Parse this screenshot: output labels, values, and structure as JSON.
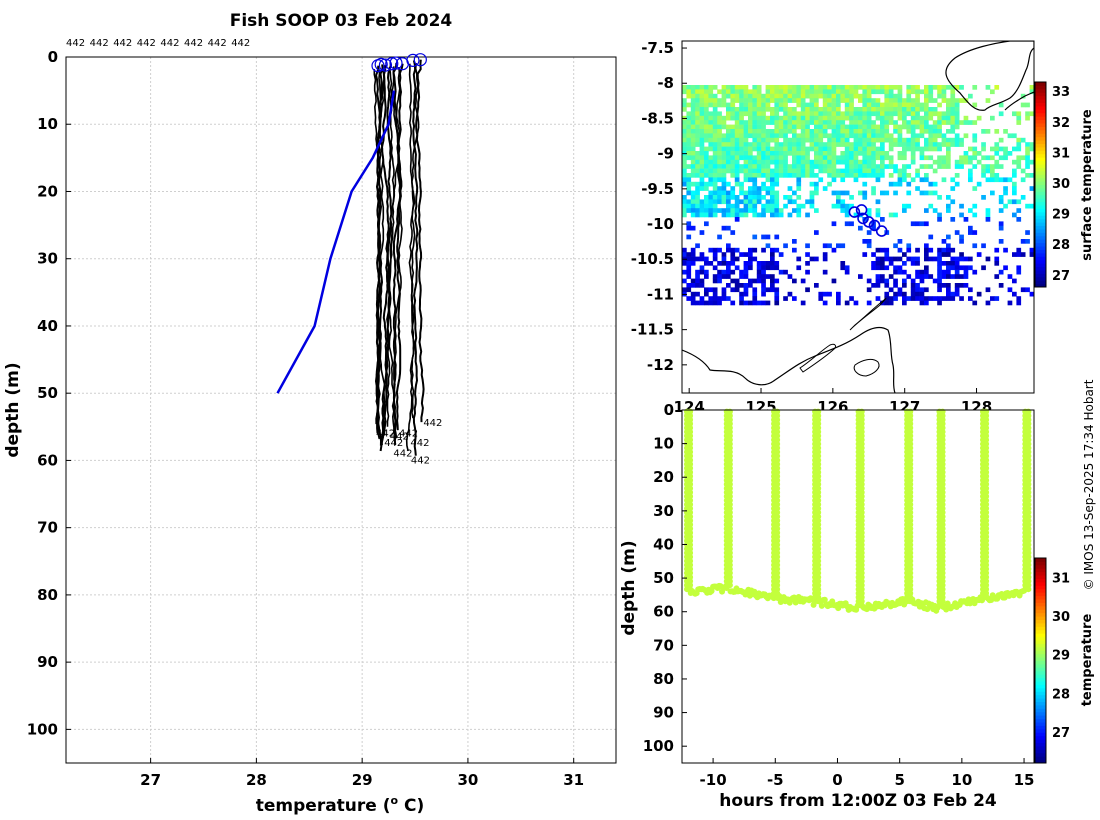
{
  "title": "Fish SOOP 03 Feb 2024",
  "credit": "© IMOS 13-Sep-2025 17:34 Hobart",
  "colors": {
    "profile_black": "#000000",
    "profile_blue": "#0000e0",
    "grid": "#cccccc"
  },
  "chart_data": [
    {
      "id": "profile",
      "type": "line",
      "title": "Fish SOOP 03 Feb 2024",
      "xlabel": "temperature (° C)",
      "xlabel_main": "temperature (",
      "xlabel_sup": "o",
      "xlabel_tail": " C)",
      "ylabel": "depth (m)",
      "xlim": [
        26.2,
        31.4
      ],
      "ylim": [
        0,
        105
      ],
      "y_reversed": true,
      "xticks": [
        "27",
        "28",
        "29",
        "30",
        "31"
      ],
      "yticks": [
        "0",
        "10",
        "20",
        "30",
        "40",
        "50",
        "60",
        "70",
        "80",
        "90",
        "100"
      ],
      "grid": true,
      "top_labels": [
        "442",
        "442",
        "442",
        "442",
        "442",
        "442",
        "442",
        "442"
      ],
      "profile_label": "442",
      "reference_profile": {
        "name": "climatology",
        "temperature": [
          29.3,
          29.25,
          29.1,
          28.9,
          28.7,
          28.55,
          28.2
        ],
        "depth": [
          5,
          10,
          15,
          20,
          30,
          40,
          50
        ]
      },
      "profiles": [
        {
          "start_temp": 29.15,
          "start_depth": 1.3,
          "end_depth": 56
        },
        {
          "start_temp": 29.18,
          "start_depth": 1.1,
          "end_depth": 58
        },
        {
          "start_temp": 29.22,
          "start_depth": 1.2,
          "end_depth": 59
        },
        {
          "start_temp": 29.28,
          "start_depth": 1.0,
          "end_depth": 57
        },
        {
          "start_temp": 29.32,
          "start_depth": 0.9,
          "end_depth": 56
        },
        {
          "start_temp": 29.38,
          "start_depth": 1.0,
          "end_depth": 58
        },
        {
          "start_temp": 29.48,
          "start_depth": 0.5,
          "end_depth": 60
        },
        {
          "start_temp": 29.55,
          "start_depth": 0.4,
          "end_depth": 55
        }
      ]
    },
    {
      "id": "sst-map",
      "type": "heatmap",
      "colorbar_label": "surface temperature",
      "clim": [
        26.6,
        33.3
      ],
      "colorbar_ticks": [
        "27",
        "28",
        "29",
        "30",
        "31",
        "32",
        "33"
      ],
      "x_ticks": [
        "124",
        "125",
        "126",
        "127",
        "128"
      ],
      "y_ticks": [
        "-7.5",
        "-8",
        "-8.5",
        "-9",
        "-9.5",
        "-10",
        "-10.5",
        "-11",
        "-11.5",
        "-12"
      ],
      "xlim": [
        123.9,
        128.8
      ],
      "ylim": [
        -12.4,
        -7.4
      ],
      "track": [
        {
          "lon": 126.3,
          "lat": -9.83
        },
        {
          "lon": 126.4,
          "lat": -9.8
        },
        {
          "lon": 126.42,
          "lat": -9.92
        },
        {
          "lon": 126.5,
          "lat": -9.97
        },
        {
          "lon": 126.58,
          "lat": -10.02
        },
        {
          "lon": 126.68,
          "lat": -10.1
        }
      ]
    },
    {
      "id": "depth-time",
      "type": "scatter",
      "xlabel": "hours from 12:00Z 03 Feb 24",
      "ylabel": "depth (m)",
      "colorbar_label": "temperature",
      "xlim": [
        -12.5,
        15.8
      ],
      "ylim": [
        0,
        105
      ],
      "y_reversed": true,
      "xticks": [
        "-10",
        "-5",
        "0",
        "5",
        "10",
        "15"
      ],
      "yticks": [
        "0",
        "10",
        "20",
        "30",
        "40",
        "50",
        "60",
        "70",
        "80",
        "90",
        "100"
      ],
      "clim": [
        26.2,
        31.5
      ],
      "colorbar_ticks": [
        "27",
        "28",
        "29",
        "30",
        "31"
      ],
      "profile_hours": [
        -12.1,
        -8.9,
        -5.1,
        -1.8,
        1.7,
        5.6,
        8.2,
        11.7,
        15.1
      ],
      "profile_bottom_depths": [
        54,
        53,
        56,
        57,
        59,
        57,
        59,
        56,
        54
      ],
      "profile_top_depths": [
        0.5,
        0.5,
        0.5,
        0.5,
        0.5,
        0.5,
        0.5,
        0.5,
        0.5
      ],
      "temperature": 29.2
    }
  ]
}
